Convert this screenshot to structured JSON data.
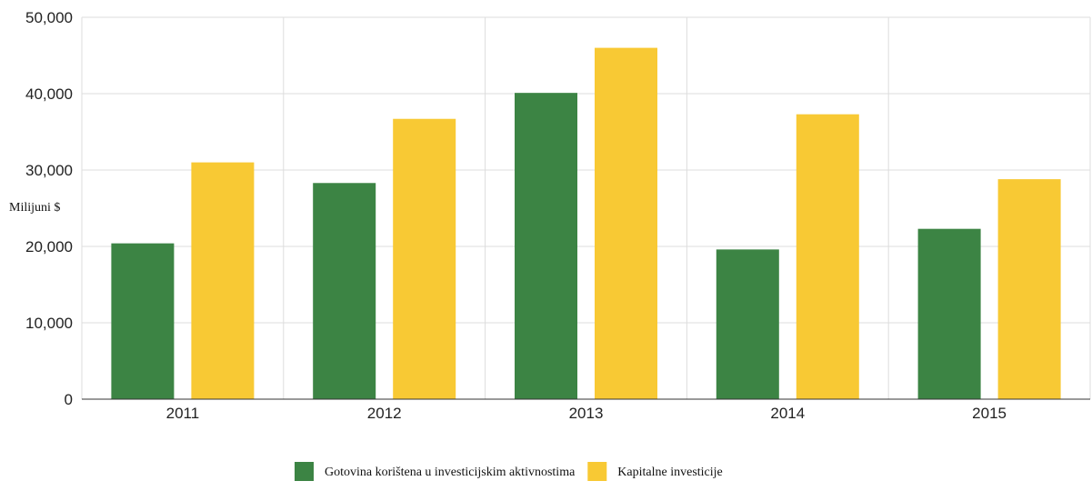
{
  "chart_data": {
    "type": "bar",
    "title": "",
    "xlabel": "",
    "ylabel": "Milijuni $",
    "categories": [
      "2011",
      "2012",
      "2013",
      "2014",
      "2015"
    ],
    "series": [
      {
        "name": "Gotovina korištena u investicijskim aktivnostima",
        "color": "#3c8444",
        "values": [
          20400,
          28300,
          40100,
          19600,
          22300
        ]
      },
      {
        "name": "Kapitalne investicije",
        "color": "#f8c934",
        "values": [
          31000,
          36700,
          46000,
          37300,
          28800
        ]
      }
    ],
    "ylim": [
      0,
      50000
    ],
    "yticks": [
      0,
      10000,
      20000,
      30000,
      40000,
      50000
    ],
    "ytick_labels": [
      "0",
      "10,000",
      "20,000",
      "30,000",
      "40,000",
      "50,000"
    ],
    "grid": true,
    "legend_position": "bottom-center"
  }
}
